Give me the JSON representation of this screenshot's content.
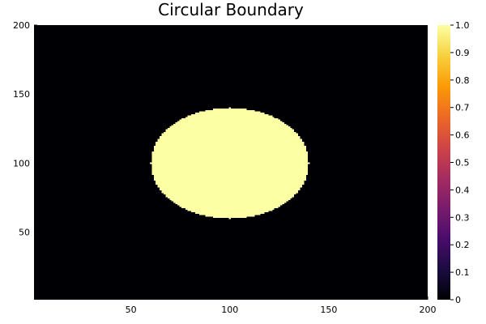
{
  "chart_data": {
    "type": "heatmap",
    "title": "Circular Boundary",
    "xlabel": "",
    "ylabel": "",
    "xlim": [
      1,
      200
    ],
    "ylim": [
      1,
      200
    ],
    "x_ticks": [
      50,
      100,
      150,
      200
    ],
    "y_ticks": [
      50,
      100,
      150,
      200
    ],
    "grid": false,
    "colormap": "inferno",
    "colorbar": {
      "range": [
        0,
        1
      ],
      "ticks": [
        "0",
        "0.1",
        "0.2",
        "0.3",
        "0.4",
        "0.5",
        "0.6",
        "0.7",
        "0.8",
        "0.9",
        "1.0"
      ],
      "stops": [
        "#000004",
        "#1b0c41",
        "#4a0c6b",
        "#781c6d",
        "#a52c60",
        "#cf4446",
        "#ed6925",
        "#fb9b06",
        "#f7d13d",
        "#fcffa4"
      ]
    },
    "regions": [
      {
        "shape": "circle",
        "center_x": 100,
        "center_y": 100,
        "radius": 40,
        "inside_value": 1,
        "outside_value": 0
      }
    ],
    "colors": {
      "inside": "#fcffa4",
      "outside": "#000004"
    }
  }
}
